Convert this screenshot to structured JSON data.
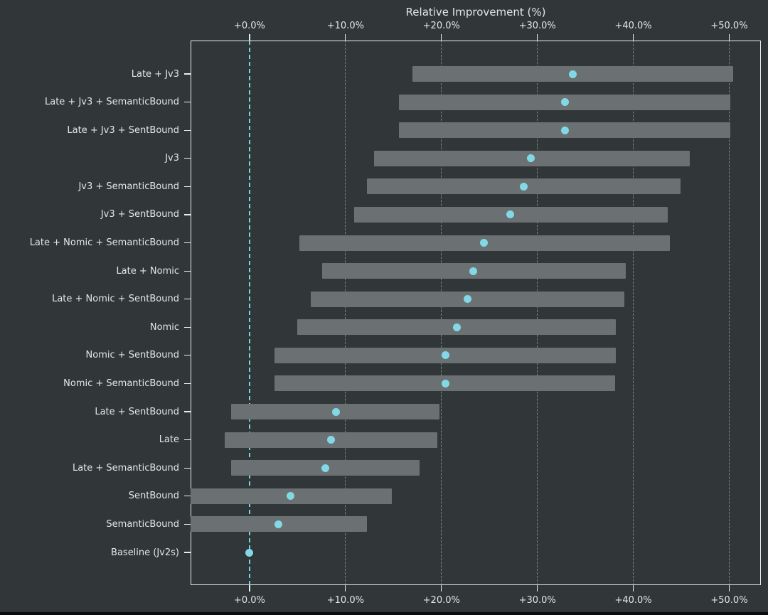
{
  "chart_data": {
    "type": "bar",
    "subtype": "horizontal-range-bars-with-point-markers",
    "title": "Relative Improvement (%)",
    "x_axis": {
      "label": "Relative Improvement (%)",
      "tick_values": [
        0,
        10,
        20,
        30,
        40,
        50
      ],
      "tick_labels": [
        "+0.0%",
        "+10.0%",
        "+20.0%",
        "+30.0%",
        "+40.0%",
        "+50.0%"
      ],
      "xlim": [
        -6.15,
        53.3
      ],
      "shown_on": "top-and-bottom"
    },
    "grid": "vertical-dashed",
    "zero_reference_line": 0.0,
    "legend": "none",
    "rows": [
      {
        "label": "Late + Jv3",
        "range_low": 17.0,
        "range_high": 50.4,
        "point": 33.7
      },
      {
        "label": "Late + Jv3 + SemanticBound",
        "range_low": 15.6,
        "range_high": 50.1,
        "point": 32.9
      },
      {
        "label": "Late + Jv3 + SentBound",
        "range_low": 15.6,
        "range_high": 50.1,
        "point": 32.9
      },
      {
        "label": "Jv3",
        "range_low": 13.0,
        "range_high": 45.9,
        "point": 29.3
      },
      {
        "label": "Jv3 + SemanticBound",
        "range_low": 12.2,
        "range_high": 44.9,
        "point": 28.6
      },
      {
        "label": "Jv3 + SentBound",
        "range_low": 10.9,
        "range_high": 43.6,
        "point": 27.2
      },
      {
        "label": "Late + Nomic + SemanticBound",
        "range_low": 5.2,
        "range_high": 43.8,
        "point": 24.4
      },
      {
        "label": "Late + Nomic",
        "range_low": 7.6,
        "range_high": 39.2,
        "point": 23.3
      },
      {
        "label": "Late + Nomic + SentBound",
        "range_low": 6.4,
        "range_high": 39.1,
        "point": 22.7
      },
      {
        "label": "Nomic",
        "range_low": 5.0,
        "range_high": 38.2,
        "point": 21.6
      },
      {
        "label": "Nomic + SentBound",
        "range_low": 2.6,
        "range_high": 38.2,
        "point": 20.4
      },
      {
        "label": "Nomic + SemanticBound",
        "range_low": 2.6,
        "range_high": 38.1,
        "point": 20.4
      },
      {
        "label": "Late + SentBound",
        "range_low": -1.9,
        "range_high": 19.8,
        "point": 9.0
      },
      {
        "label": "Late",
        "range_low": -2.6,
        "range_high": 19.6,
        "point": 8.5
      },
      {
        "label": "Late + SemanticBound",
        "range_low": -1.9,
        "range_high": 17.7,
        "point": 7.9
      },
      {
        "label": "SentBound",
        "range_low": -6.2,
        "range_high": 14.8,
        "point": 4.3
      },
      {
        "label": "SemanticBound",
        "range_low": -6.2,
        "range_high": 12.2,
        "point": 3.0
      },
      {
        "label": "Baseline (Jv2s)",
        "range_low": null,
        "range_high": null,
        "point": 0.0
      }
    ]
  },
  "colors": {
    "background": "#313638",
    "range_bar": "#6b7172",
    "point_marker": "#82d8e6",
    "zero_line": "#74d4e4",
    "grid_line": "rgba(195,199,199,0.55)",
    "axis_line": "#e9ecec",
    "text": "#e4e7e7",
    "bottom_edge": "#0b0d0d"
  }
}
